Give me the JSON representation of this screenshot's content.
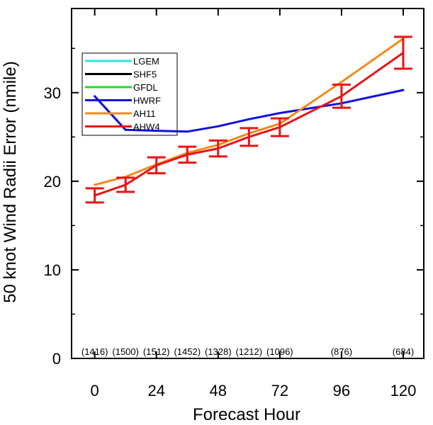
{
  "chart_data": {
    "type": "line",
    "xlabel": "Forecast Hour",
    "ylabel": "50 knot Wind Radii Error (nmile)",
    "xlim": [
      -9,
      128
    ],
    "ylim": [
      0,
      39.5
    ],
    "xticks": [
      0,
      24,
      48,
      72,
      96,
      120
    ],
    "xtick_labels": [
      "0",
      "24",
      "48",
      "72",
      "96",
      "120"
    ],
    "yticks": [
      0,
      10,
      20,
      30
    ],
    "ytick_labels": [
      "0",
      "10",
      "20",
      "30"
    ],
    "grid": false,
    "legend_position": "top-left",
    "series": [
      {
        "name": "LGEM",
        "color": "#33e6e6",
        "x": [],
        "y": []
      },
      {
        "name": "SHF5",
        "color": "#000000",
        "x": [],
        "y": []
      },
      {
        "name": "GFDL",
        "color": "#22dd22",
        "x": [],
        "y": []
      },
      {
        "name": "HWRF",
        "color": "#1010dd",
        "x": [
          0,
          12,
          24,
          36,
          48,
          60,
          72,
          96,
          120
        ],
        "y": [
          29.6,
          25.8,
          25.7,
          25.6,
          26.2,
          27.0,
          27.7,
          28.8,
          30.3
        ]
      },
      {
        "name": "AH11",
        "color": "#f08a1c",
        "x": [
          0,
          12,
          24,
          36,
          48,
          60,
          72,
          96,
          120
        ],
        "y": [
          19.6,
          20.5,
          21.9,
          23.2,
          24.1,
          25.4,
          26.5,
          31.2,
          36.1
        ]
      },
      {
        "name": "AHW4",
        "color": "#e81414",
        "x": [
          0,
          12,
          24,
          36,
          48,
          60,
          72,
          96,
          120
        ],
        "y": [
          18.4,
          19.6,
          21.8,
          23.0,
          23.7,
          25.0,
          26.1,
          29.6,
          34.5
        ]
      }
    ],
    "error_bars": {
      "series": "AHW4",
      "x": [
        0,
        12,
        24,
        36,
        48,
        60,
        72,
        96,
        120
      ],
      "lower": [
        17.6,
        18.8,
        20.9,
        22.1,
        22.8,
        24.0,
        25.1,
        28.3,
        32.7
      ],
      "upper": [
        19.2,
        20.4,
        22.7,
        23.9,
        24.6,
        26.0,
        27.1,
        30.9,
        36.3
      ]
    },
    "sample_counts": {
      "x": [
        0,
        12,
        24,
        36,
        48,
        60,
        72,
        96,
        120
      ],
      "labels": [
        "(1416)",
        "(1500)",
        "(1512)",
        "(1452)",
        "(1328)",
        "(1212)",
        "(1096)",
        "(876)",
        "(684)"
      ]
    }
  }
}
